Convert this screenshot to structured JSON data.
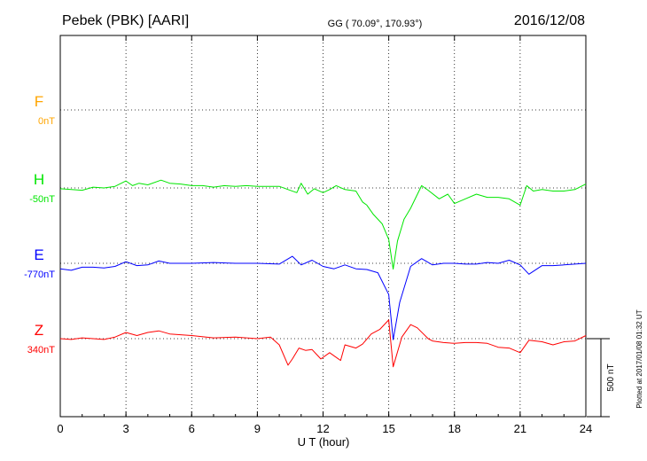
{
  "header": {
    "station": "Pebek (PBK)  [AARI]",
    "coords": "GG ( 70.09°, 170.93°)",
    "date": "2016/12/08"
  },
  "footer": {
    "plotted": "Plotted at 2017/01/08 01:32 UT"
  },
  "chart_data": {
    "type": "line",
    "xlabel": "U T (hour)",
    "xlim": [
      0,
      24
    ],
    "xticks": [
      "0",
      "3",
      "6",
      "9",
      "12",
      "15",
      "18",
      "21",
      "24"
    ],
    "grid": true,
    "scale_bar": "500 nT",
    "colors": {
      "F": "#ffa500",
      "H": "#00e600",
      "E": "#0000ff",
      "Z": "#ff0000"
    },
    "series": [
      {
        "name": "F",
        "baseline": "0nT",
        "points": []
      },
      {
        "name": "H",
        "baseline": "-50nT",
        "points": [
          [
            0,
            -5
          ],
          [
            0.5,
            -10
          ],
          [
            1,
            -15
          ],
          [
            1.5,
            5
          ],
          [
            2,
            0
          ],
          [
            2.5,
            10
          ],
          [
            3,
            45
          ],
          [
            3.3,
            15
          ],
          [
            3.6,
            30
          ],
          [
            4,
            20
          ],
          [
            4.6,
            50
          ],
          [
            5,
            30
          ],
          [
            5.5,
            25
          ],
          [
            6,
            15
          ],
          [
            6.5,
            15
          ],
          [
            7,
            5
          ],
          [
            7.5,
            15
          ],
          [
            8,
            10
          ],
          [
            8.5,
            15
          ],
          [
            9,
            10
          ],
          [
            9.5,
            10
          ],
          [
            10,
            10
          ],
          [
            10.4,
            -10
          ],
          [
            10.8,
            -30
          ],
          [
            11,
            30
          ],
          [
            11.3,
            -40
          ],
          [
            11.6,
            -5
          ],
          [
            12,
            -30
          ],
          [
            12.3,
            -10
          ],
          [
            12.6,
            15
          ],
          [
            13,
            -10
          ],
          [
            13.5,
            -20
          ],
          [
            13.8,
            -90
          ],
          [
            14,
            -110
          ],
          [
            14.3,
            -170
          ],
          [
            14.7,
            -230
          ],
          [
            15,
            -330
          ],
          [
            15.2,
            -520
          ],
          [
            15.4,
            -340
          ],
          [
            15.7,
            -200
          ],
          [
            16,
            -130
          ],
          [
            16.5,
            15
          ],
          [
            16.8,
            -15
          ],
          [
            17.3,
            -70
          ],
          [
            17.7,
            -40
          ],
          [
            18,
            -100
          ],
          [
            18.5,
            -70
          ],
          [
            19,
            -40
          ],
          [
            19.5,
            -60
          ],
          [
            20,
            -60
          ],
          [
            20.5,
            -70
          ],
          [
            21,
            -110
          ],
          [
            21.3,
            15
          ],
          [
            21.6,
            -20
          ],
          [
            22,
            -10
          ],
          [
            22.5,
            -20
          ],
          [
            23,
            -20
          ],
          [
            23.5,
            -10
          ],
          [
            24,
            25
          ]
        ]
      },
      {
        "name": "E",
        "baseline": "-770nT",
        "points": [
          [
            0,
            -35
          ],
          [
            0.5,
            -45
          ],
          [
            1,
            -25
          ],
          [
            1.5,
            -25
          ],
          [
            2,
            -30
          ],
          [
            2.5,
            -20
          ],
          [
            3,
            10
          ],
          [
            3.5,
            -15
          ],
          [
            4,
            -10
          ],
          [
            4.5,
            15
          ],
          [
            5,
            0
          ],
          [
            6,
            0
          ],
          [
            7,
            5
          ],
          [
            8,
            0
          ],
          [
            9,
            0
          ],
          [
            10,
            -5
          ],
          [
            10.6,
            45
          ],
          [
            11,
            -10
          ],
          [
            11.5,
            20
          ],
          [
            12,
            -20
          ],
          [
            12.5,
            -35
          ],
          [
            13,
            -10
          ],
          [
            13.5,
            -35
          ],
          [
            14,
            -40
          ],
          [
            14.5,
            -60
          ],
          [
            15,
            -200
          ],
          [
            15.2,
            -490
          ],
          [
            15.5,
            -250
          ],
          [
            16,
            -20
          ],
          [
            16.5,
            30
          ],
          [
            17,
            -10
          ],
          [
            17.5,
            0
          ],
          [
            18,
            0
          ],
          [
            18.5,
            -5
          ],
          [
            19,
            -5
          ],
          [
            19.5,
            5
          ],
          [
            20,
            0
          ],
          [
            20.5,
            20
          ],
          [
            21,
            -10
          ],
          [
            21.4,
            -70
          ],
          [
            22,
            -15
          ],
          [
            22.5,
            -15
          ],
          [
            23,
            -10
          ],
          [
            24,
            0
          ]
        ]
      },
      {
        "name": "Z",
        "baseline": "340nT",
        "points": [
          [
            0,
            0
          ],
          [
            0.5,
            -5
          ],
          [
            1,
            5
          ],
          [
            1.5,
            0
          ],
          [
            2,
            -5
          ],
          [
            2.5,
            10
          ],
          [
            3,
            40
          ],
          [
            3.5,
            20
          ],
          [
            4,
            40
          ],
          [
            4.5,
            50
          ],
          [
            5,
            30
          ],
          [
            6,
            20
          ],
          [
            7,
            5
          ],
          [
            8,
            10
          ],
          [
            9,
            0
          ],
          [
            9.6,
            10
          ],
          [
            10,
            -40
          ],
          [
            10.4,
            -170
          ],
          [
            10.6,
            -130
          ],
          [
            10.9,
            -60
          ],
          [
            11.2,
            -75
          ],
          [
            11.5,
            -70
          ],
          [
            11.9,
            -130
          ],
          [
            12.3,
            -90
          ],
          [
            12.8,
            -140
          ],
          [
            13,
            -40
          ],
          [
            13.5,
            -60
          ],
          [
            13.8,
            -35
          ],
          [
            14.2,
            30
          ],
          [
            14.6,
            60
          ],
          [
            15,
            120
          ],
          [
            15.2,
            -180
          ],
          [
            15.6,
            10
          ],
          [
            16,
            90
          ],
          [
            16.3,
            70
          ],
          [
            16.8,
            0
          ],
          [
            17,
            -15
          ],
          [
            17.5,
            -25
          ],
          [
            18,
            -30
          ],
          [
            18.5,
            -25
          ],
          [
            19,
            -25
          ],
          [
            19.5,
            -30
          ],
          [
            20,
            -55
          ],
          [
            20.5,
            -60
          ],
          [
            21,
            -90
          ],
          [
            21.4,
            -10
          ],
          [
            22,
            -20
          ],
          [
            22.5,
            -40
          ],
          [
            23,
            -20
          ],
          [
            23.5,
            -15
          ],
          [
            24,
            20
          ]
        ]
      }
    ]
  }
}
